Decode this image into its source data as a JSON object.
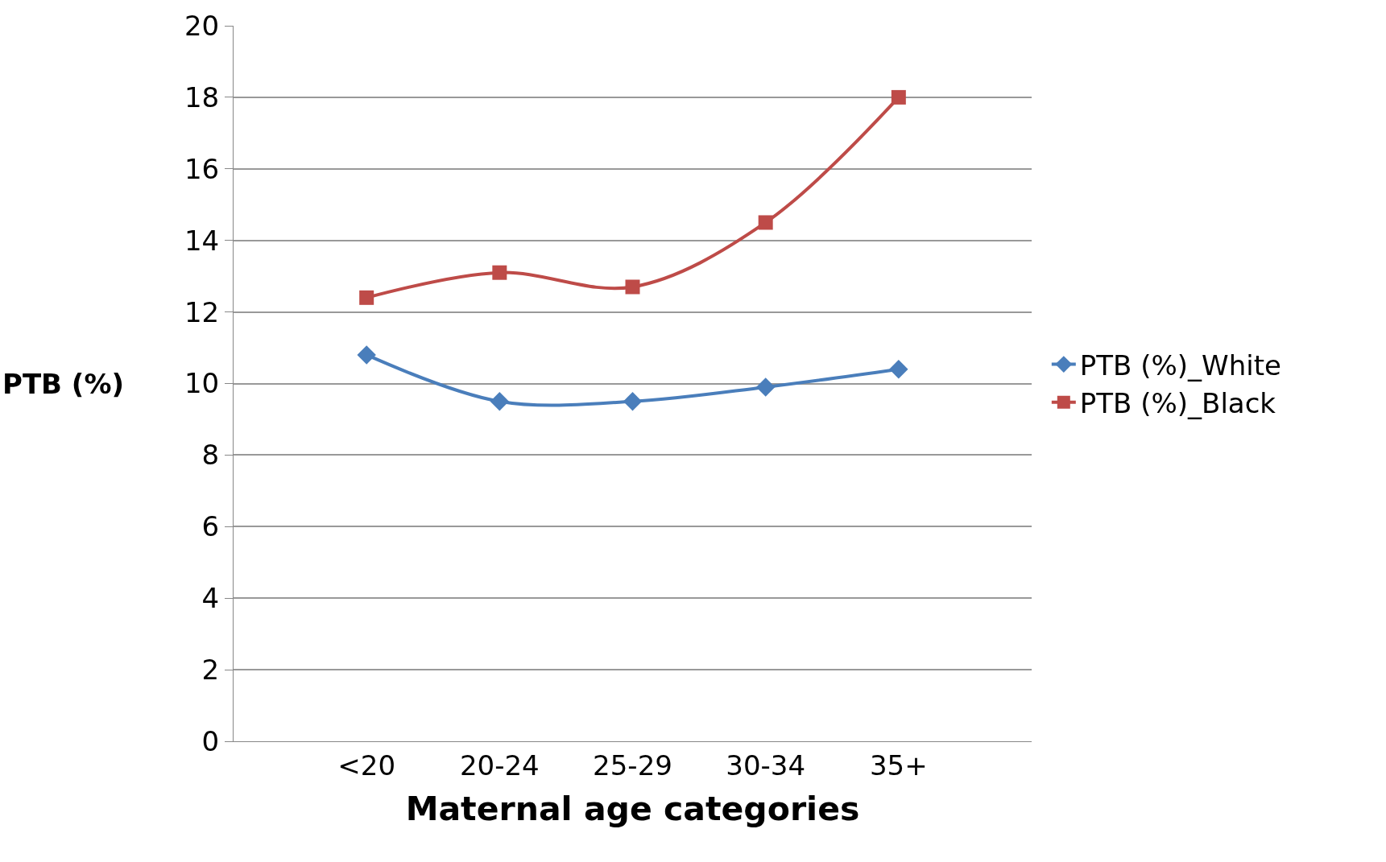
{
  "chart_data": {
    "type": "line",
    "xlabel": "Maternal age categories",
    "ylabel": "PTB (%)",
    "categories": [
      "<20",
      "20-24",
      "25-29",
      "30-34",
      "35+"
    ],
    "series": [
      {
        "name": "PTB (%)_White",
        "color": "#4a7ebb",
        "values": [
          10.8,
          9.5,
          9.5,
          9.9,
          10.4
        ],
        "marker": "diamond"
      },
      {
        "name": "PTB (%)_Black",
        "color": "#be4b48",
        "values": [
          12.4,
          13.1,
          12.7,
          14.5,
          18.0
        ],
        "marker": "square"
      }
    ],
    "ylim": [
      0,
      20
    ],
    "yticks": [
      0,
      2,
      4,
      6,
      8,
      10,
      12,
      14,
      16,
      18,
      20
    ],
    "grid": "y",
    "legend": "right"
  }
}
